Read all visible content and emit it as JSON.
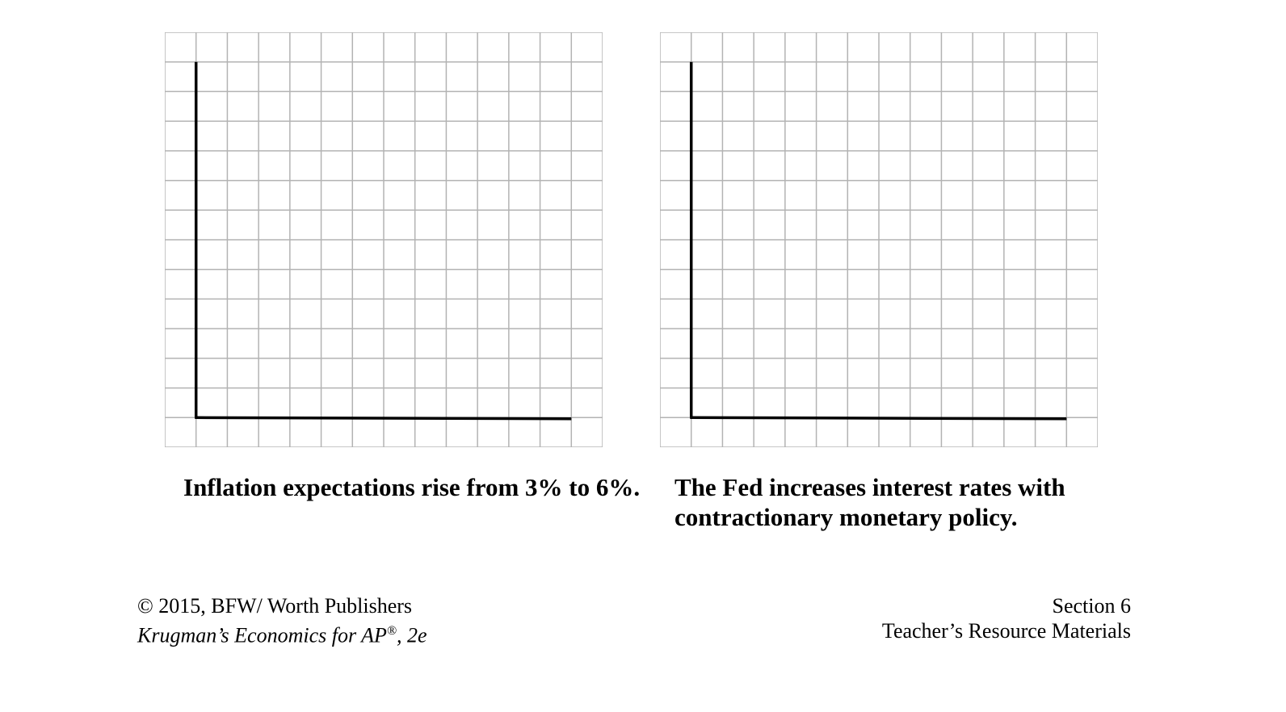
{
  "graphs": [
    {
      "caption_line1": "Inflation expectations rise from 3% to 6%.",
      "caption_line2": ""
    },
    {
      "caption_line1": "The Fed increases interest rates with",
      "caption_line2": "contractionary monetary policy."
    }
  ],
  "footer": {
    "left_line1": "© 2015, BFW/ Worth Publishers",
    "left_line2_main": "Krugman’s Economics for AP",
    "left_line2_sup": "®",
    "left_line2_tail": ", 2e",
    "right_line1": "Section 6",
    "right_line2": "Teacher’s Resource Materials"
  },
  "colors": {
    "grid_line": "#b3b3b3",
    "axis_line": "#000000"
  }
}
